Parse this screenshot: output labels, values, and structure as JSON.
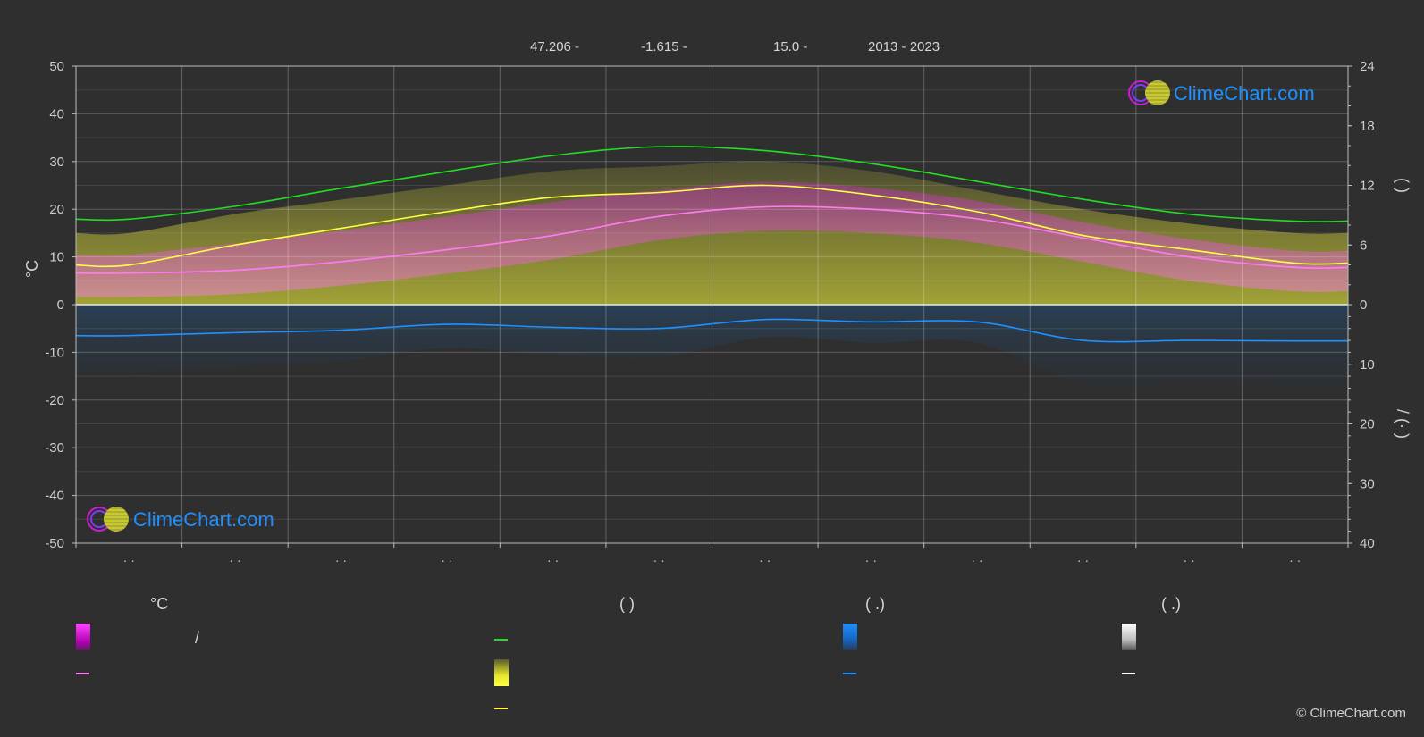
{
  "header": {
    "lat": "47.206 -",
    "lon": "-1.615 -",
    "elev": "15.0 -",
    "years": "2013 - 2023"
  },
  "logo_text": "ClimeChart.com",
  "copyright": "© ClimeChart.com",
  "legend": {
    "col1_head": "°C",
    "col2_head": "(          )",
    "col3_head": "(   .)",
    "col4_head": "(   .)",
    "slash": "/"
  },
  "colors": {
    "background": "#2f2f2f",
    "temp_range": "#e21ee2",
    "temp_mean": "#ff7bf5",
    "daylight": "#22dd22",
    "sunshine": "#e6e62a",
    "sunshine_mean": "#ffff44",
    "precip": "#1e88e5",
    "precip_mean": "#1e90ff",
    "snow": "#ffffff"
  },
  "chart_data": {
    "type": "area",
    "months": 12,
    "x_tick_labels": [
      "· ·",
      "· ·",
      "· ·",
      "· ·",
      "· ·",
      "· ·",
      "· ·",
      "· ·",
      "· ·",
      "· ·",
      "· ·",
      "· ·"
    ],
    "left_axis": {
      "ylabel": "°C",
      "ylim": [
        -50,
        50
      ],
      "ticks": [
        50,
        40,
        30,
        20,
        10,
        0,
        -10,
        -20,
        -30,
        -40,
        -50
      ]
    },
    "right_axis_top": {
      "label": "(     )",
      "ylim": [
        0,
        24
      ],
      "ticks": [
        24,
        18,
        12,
        6,
        0
      ]
    },
    "right_axis_bottom": {
      "label": "/  (·  )",
      "ylim": [
        0,
        40
      ],
      "ticks": [
        0,
        10,
        20,
        30,
        40
      ]
    },
    "grid": true,
    "series": [
      {
        "key": "daylight_hours",
        "values": [
          8.6,
          9.9,
          11.7,
          13.4,
          15.0,
          15.9,
          15.5,
          14.2,
          12.4,
          10.6,
          9.1,
          8.4
        ]
      },
      {
        "key": "sunshine_mean_c",
        "values": [
          8.3,
          12.5,
          16.0,
          19.5,
          22.5,
          23.5,
          25.0,
          23.0,
          19.5,
          14.5,
          11.5,
          8.7
        ]
      },
      {
        "key": "temp_mean_c",
        "values": [
          6.6,
          7.2,
          9.0,
          11.5,
          14.5,
          18.5,
          20.5,
          20.0,
          18.0,
          14.0,
          10.0,
          7.8
        ]
      },
      {
        "key": "temp_max_band_c",
        "values": [
          15,
          19,
          22,
          25,
          28,
          29,
          30,
          28,
          24,
          20,
          17,
          15
        ]
      },
      {
        "key": "precip_mean_mm",
        "values": [
          5.2,
          4.7,
          4.3,
          3.3,
          3.8,
          4.0,
          2.5,
          2.9,
          2.9,
          6.0,
          6.0,
          6.1
        ]
      }
    ]
  }
}
